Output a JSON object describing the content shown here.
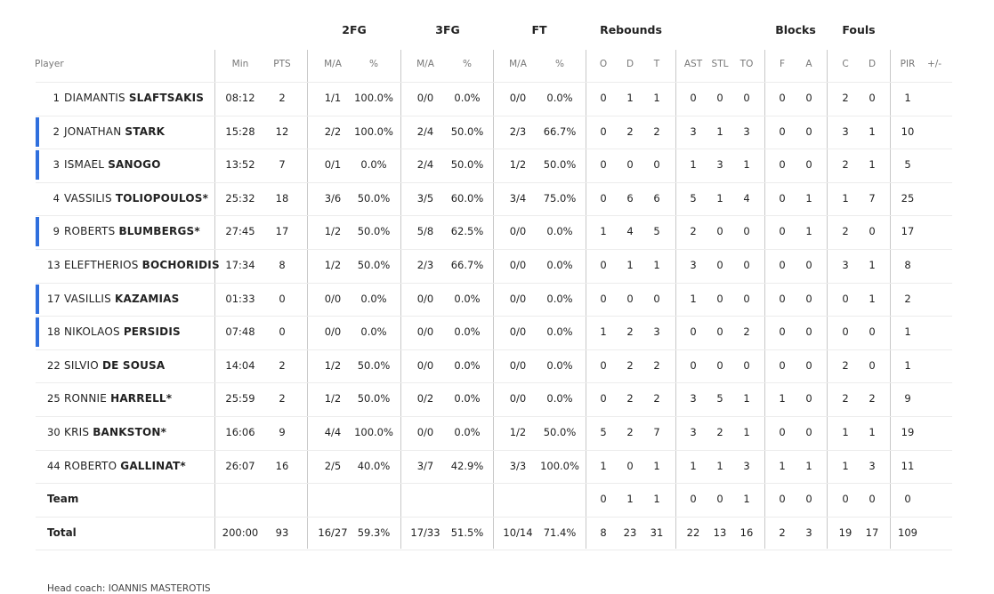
{
  "groups": [
    "2FG",
    "3FG",
    "FT",
    "Rebounds",
    "Blocks",
    "Fouls"
  ],
  "columns": [
    "Player",
    "Min",
    "PTS",
    "M/A",
    "%",
    "M/A",
    "%",
    "M/A",
    "%",
    "O",
    "D",
    "T",
    "AST",
    "STL",
    "TO",
    "F",
    "A",
    "C",
    "D",
    "PIR",
    "+/-"
  ],
  "players": [
    {
      "num": "1",
      "first": "DIAMANTIS",
      "last": "SLAFTSAKIS",
      "starter": false,
      "highlight": false,
      "stats": [
        "08:12",
        "2",
        "1/1",
        "100.0%",
        "0/0",
        "0.0%",
        "0/0",
        "0.0%",
        "0",
        "1",
        "1",
        "0",
        "0",
        "0",
        "0",
        "0",
        "2",
        "0",
        "1",
        ""
      ]
    },
    {
      "num": "2",
      "first": "JONATHAN",
      "last": "STARK",
      "starter": false,
      "highlight": true,
      "stats": [
        "15:28",
        "12",
        "2/2",
        "100.0%",
        "2/4",
        "50.0%",
        "2/3",
        "66.7%",
        "0",
        "2",
        "2",
        "3",
        "1",
        "3",
        "0",
        "0",
        "3",
        "1",
        "10",
        ""
      ]
    },
    {
      "num": "3",
      "first": "ISMAEL",
      "last": "SANOGO",
      "starter": false,
      "highlight": true,
      "stats": [
        "13:52",
        "7",
        "0/1",
        "0.0%",
        "2/4",
        "50.0%",
        "1/2",
        "50.0%",
        "0",
        "0",
        "0",
        "1",
        "3",
        "1",
        "0",
        "0",
        "2",
        "1",
        "5",
        ""
      ]
    },
    {
      "num": "4",
      "first": "VASSILIS",
      "last": "TOLIOPOULOS*",
      "starter": true,
      "highlight": false,
      "stats": [
        "25:32",
        "18",
        "3/6",
        "50.0%",
        "3/5",
        "60.0%",
        "3/4",
        "75.0%",
        "0",
        "6",
        "6",
        "5",
        "1",
        "4",
        "0",
        "1",
        "1",
        "7",
        "25",
        ""
      ]
    },
    {
      "num": "9",
      "first": "ROBERTS",
      "last": "BLUMBERGS*",
      "starter": true,
      "highlight": true,
      "stats": [
        "27:45",
        "17",
        "1/2",
        "50.0%",
        "5/8",
        "62.5%",
        "0/0",
        "0.0%",
        "1",
        "4",
        "5",
        "2",
        "0",
        "0",
        "0",
        "1",
        "2",
        "0",
        "17",
        ""
      ]
    },
    {
      "num": "13",
      "first": "ELEFTHERIOS",
      "last": "BOCHORIDIS",
      "starter": false,
      "highlight": false,
      "stats": [
        "17:34",
        "8",
        "1/2",
        "50.0%",
        "2/3",
        "66.7%",
        "0/0",
        "0.0%",
        "0",
        "1",
        "1",
        "3",
        "0",
        "0",
        "0",
        "0",
        "3",
        "1",
        "8",
        ""
      ]
    },
    {
      "num": "17",
      "first": "VASILLIS",
      "last": "KAZAMIAS",
      "starter": false,
      "highlight": true,
      "stats": [
        "01:33",
        "0",
        "0/0",
        "0.0%",
        "0/0",
        "0.0%",
        "0/0",
        "0.0%",
        "0",
        "0",
        "0",
        "1",
        "0",
        "0",
        "0",
        "0",
        "0",
        "1",
        "2",
        ""
      ]
    },
    {
      "num": "18",
      "first": "NIKOLAOS",
      "last": "PERSIDIS",
      "starter": false,
      "highlight": true,
      "stats": [
        "07:48",
        "0",
        "0/0",
        "0.0%",
        "0/0",
        "0.0%",
        "0/0",
        "0.0%",
        "1",
        "2",
        "3",
        "0",
        "0",
        "2",
        "0",
        "0",
        "0",
        "0",
        "1",
        ""
      ]
    },
    {
      "num": "22",
      "first": "SILVIO",
      "last": "DE SOUSA",
      "starter": false,
      "highlight": false,
      "stats": [
        "14:04",
        "2",
        "1/2",
        "50.0%",
        "0/0",
        "0.0%",
        "0/0",
        "0.0%",
        "0",
        "2",
        "2",
        "0",
        "0",
        "0",
        "0",
        "0",
        "2",
        "0",
        "1",
        ""
      ]
    },
    {
      "num": "25",
      "first": "RONNIE",
      "last": "HARRELL*",
      "starter": true,
      "highlight": false,
      "stats": [
        "25:59",
        "2",
        "1/2",
        "50.0%",
        "0/2",
        "0.0%",
        "0/0",
        "0.0%",
        "0",
        "2",
        "2",
        "3",
        "5",
        "1",
        "1",
        "0",
        "2",
        "2",
        "9",
        ""
      ]
    },
    {
      "num": "30",
      "first": "KRIS",
      "last": "BANKSTON*",
      "starter": true,
      "highlight": false,
      "stats": [
        "16:06",
        "9",
        "4/4",
        "100.0%",
        "0/0",
        "0.0%",
        "1/2",
        "50.0%",
        "5",
        "2",
        "7",
        "3",
        "2",
        "1",
        "0",
        "0",
        "1",
        "1",
        "19",
        ""
      ]
    },
    {
      "num": "44",
      "first": "ROBERTO",
      "last": "GALLINAT*",
      "starter": true,
      "highlight": false,
      "stats": [
        "26:07",
        "16",
        "2/5",
        "40.0%",
        "3/7",
        "42.9%",
        "3/3",
        "100.0%",
        "1",
        "0",
        "1",
        "1",
        "1",
        "3",
        "1",
        "1",
        "1",
        "3",
        "11",
        ""
      ]
    }
  ],
  "team": {
    "label": "Team",
    "stats": [
      "",
      "",
      "",
      "",
      "",
      "",
      "",
      "",
      "0",
      "1",
      "1",
      "0",
      "0",
      "1",
      "0",
      "0",
      "0",
      "0",
      "0",
      ""
    ]
  },
  "total": {
    "label": "Total",
    "stats": [
      "200:00",
      "93",
      "16/27",
      "59.3%",
      "17/33",
      "51.5%",
      "10/14",
      "71.4%",
      "8",
      "23",
      "31",
      "22",
      "13",
      "16",
      "2",
      "3",
      "19",
      "17",
      "109",
      ""
    ]
  },
  "footer": {
    "text": "Head coach: IOANNIS MASTEROTIS"
  },
  "colors": {
    "highlight_bar": "#2f6fdd",
    "divider": "#c8c8c8",
    "row_border": "#ececec"
  }
}
